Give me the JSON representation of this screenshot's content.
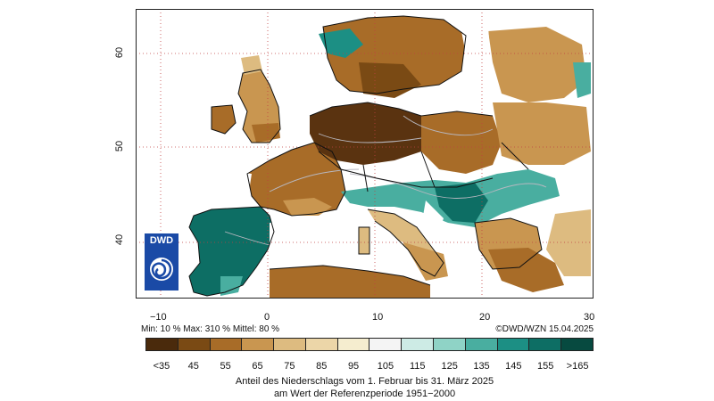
{
  "map": {
    "axes": {
      "x_ticks": [
        "−10",
        "0",
        "10",
        "20",
        "30"
      ],
      "y_ticks": [
        "40",
        "50",
        "60"
      ]
    },
    "stats": "Min: 10 %  Max: 310 %  Mittel: 80 %",
    "credit": "©DWD/WZN 15.04.2025",
    "logo_text": "DWD",
    "legend": {
      "labels": [
        "<35",
        "45",
        "55",
        "65",
        "75",
        "85",
        "95",
        "105",
        "115",
        "125",
        "135",
        "145",
        "155",
        ">165"
      ],
      "colors": [
        "#4a2a0c",
        "#7a4a14",
        "#a86c28",
        "#c99650",
        "#ddbb80",
        "#ecd6a8",
        "#f5edcf",
        "#f4f4f4",
        "#cdebe5",
        "#8fd3c6",
        "#49aea0",
        "#1c8f84",
        "#0d6e64",
        "#074a40"
      ]
    },
    "caption": {
      "line1": "Anteil des Niederschlags vom 1. Februar bis 31. März 2025",
      "line2": "am Wert der Referenzperiode 1951−2000"
    },
    "colors": {
      "land_dry": "#a86c28",
      "land_very_dry": "#5a3310",
      "land_moderate": "#c99650",
      "land_light": "#ddbb80",
      "wet_light": "#8fd3c6",
      "wet": "#1c8f84",
      "wet_dark": "#074a40",
      "gridline": "#c04040",
      "coast": "#111111",
      "rivers": "#b8b8c0"
    }
  }
}
